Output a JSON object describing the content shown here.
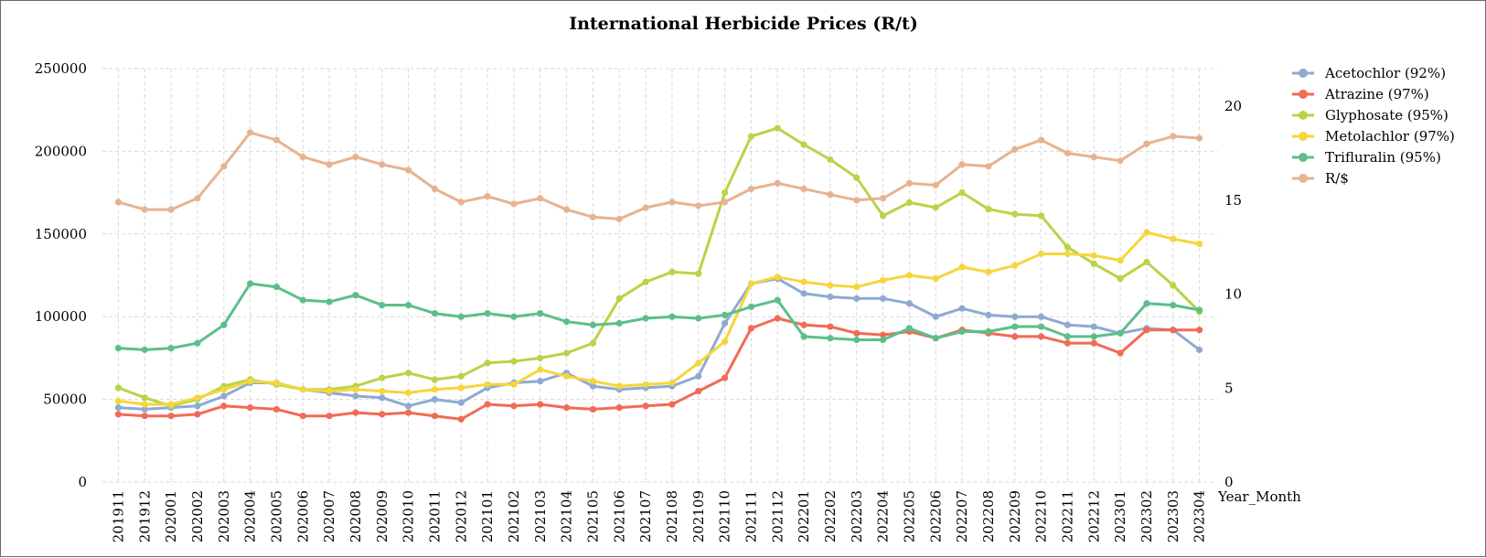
{
  "chart_data": {
    "type": "line",
    "title": "International Herbicide Prices (R/t)",
    "xlabel": "Year_Month",
    "ylabel": "",
    "ylim": [
      0,
      250000
    ],
    "ylim_secondary": [
      0,
      22
    ],
    "yticks": [
      "0",
      "50000",
      "100000",
      "150000",
      "200000",
      "250000"
    ],
    "yticks_secondary": [
      "0",
      "5",
      "10",
      "15",
      "20"
    ],
    "grid": true,
    "legend_position": "right",
    "categories": [
      "201911",
      "201912",
      "202001",
      "202002",
      "202003",
      "202004",
      "202005",
      "202006",
      "202007",
      "202008",
      "202009",
      "202010",
      "202011",
      "202012",
      "202101",
      "202102",
      "202103",
      "202104",
      "202105",
      "202106",
      "202107",
      "202108",
      "202109",
      "202110",
      "202111",
      "202112",
      "202201",
      "202202",
      "202203",
      "202204",
      "202205",
      "202206",
      "202207",
      "202208",
      "202209",
      "202210",
      "202211",
      "202212",
      "202301",
      "202302",
      "202303",
      "202304"
    ],
    "series": [
      {
        "name": "Acetochlor (92%)",
        "axis": "primary",
        "color": "#8eaad3",
        "values": [
          45000,
          44000,
          45000,
          46000,
          52000,
          60000,
          60000,
          56000,
          54000,
          52000,
          51000,
          46000,
          50000,
          48000,
          57000,
          60000,
          61000,
          66000,
          58000,
          56000,
          57000,
          58000,
          64000,
          96000,
          120000,
          123000,
          114000,
          112000,
          111000,
          111000,
          108000,
          100000,
          105000,
          101000,
          100000,
          100000,
          95000,
          94000,
          90000,
          93000,
          92000,
          80000
        ]
      },
      {
        "name": "Atrazine (97%)",
        "axis": "primary",
        "color": "#f16b55",
        "values": [
          41000,
          40000,
          40000,
          41000,
          46000,
          45000,
          44000,
          40000,
          40000,
          42000,
          41000,
          42000,
          40000,
          38000,
          47000,
          46000,
          47000,
          45000,
          44000,
          45000,
          46000,
          47000,
          55000,
          63000,
          93000,
          99000,
          95000,
          94000,
          90000,
          89000,
          91000,
          87000,
          92000,
          90000,
          88000,
          88000,
          84000,
          84000,
          78000,
          92000,
          92000,
          92000
        ]
      },
      {
        "name": "Glyphosate (95%)",
        "axis": "primary",
        "color": "#b8d448",
        "values": [
          57000,
          51000,
          46000,
          50000,
          58000,
          62000,
          59000,
          56000,
          56000,
          58000,
          63000,
          66000,
          62000,
          64000,
          72000,
          73000,
          75000,
          78000,
          84000,
          111000,
          121000,
          127000,
          126000,
          175000,
          209000,
          214000,
          204000,
          195000,
          184000,
          161000,
          169000,
          166000,
          175000,
          165000,
          162000,
          161000,
          142000,
          132000,
          123000,
          133000,
          119000,
          103000
        ]
      },
      {
        "name": "Metolachlor (97%)",
        "axis": "primary",
        "color": "#f5d63d",
        "values": [
          49000,
          47000,
          47000,
          51000,
          56000,
          61000,
          60000,
          56000,
          55000,
          56000,
          55000,
          54000,
          56000,
          57000,
          59000,
          59000,
          68000,
          64000,
          61000,
          58000,
          59000,
          60000,
          72000,
          85000,
          120000,
          124000,
          121000,
          119000,
          118000,
          122000,
          125000,
          123000,
          130000,
          127000,
          131000,
          138000,
          138000,
          137000,
          134000,
          151000,
          147000,
          144000
        ]
      },
      {
        "name": "Trifluralin (95%)",
        "axis": "primary",
        "color": "#5cbf8b",
        "values": [
          81000,
          80000,
          81000,
          84000,
          95000,
          120000,
          118000,
          110000,
          109000,
          113000,
          107000,
          107000,
          102000,
          100000,
          102000,
          100000,
          102000,
          97000,
          95000,
          96000,
          99000,
          100000,
          99000,
          101000,
          106000,
          110000,
          88000,
          87000,
          86000,
          86000,
          93000,
          87000,
          91000,
          91000,
          94000,
          94000,
          88000,
          88000,
          90000,
          108000,
          107000,
          104000
        ]
      },
      {
        "name": "R/$",
        "axis": "secondary",
        "color": "#e6b391",
        "values": [
          14.9,
          14.5,
          14.5,
          15.1,
          16.8,
          18.6,
          18.2,
          17.3,
          16.9,
          17.3,
          16.9,
          16.6,
          15.6,
          14.9,
          15.2,
          14.8,
          15.1,
          14.5,
          14.1,
          14.0,
          14.6,
          14.9,
          14.7,
          14.9,
          15.6,
          15.9,
          15.6,
          15.3,
          15.0,
          15.1,
          15.9,
          15.8,
          16.9,
          16.8,
          17.7,
          18.2,
          17.5,
          17.3,
          17.1,
          18.0,
          18.4,
          18.3
        ]
      }
    ]
  }
}
